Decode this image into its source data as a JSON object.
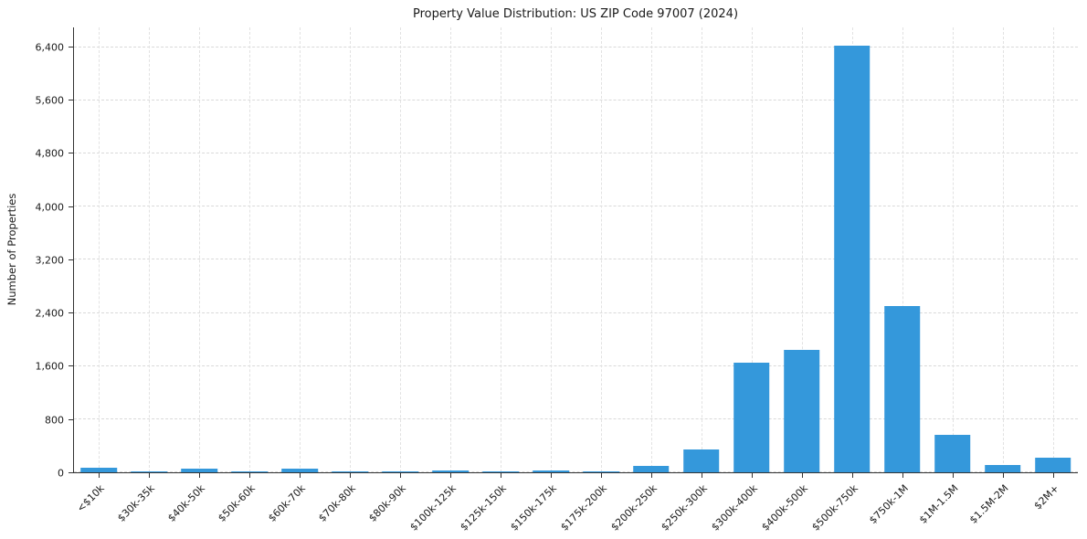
{
  "chart_data": {
    "type": "bar",
    "title": "Property Value Distribution: US ZIP Code 97007 (2024)",
    "ylabel": "Number of Properties",
    "xlabel": "",
    "categories": [
      "<$10k",
      "$30k-35k",
      "$40k-50k",
      "$50k-60k",
      "$60k-70k",
      "$70k-80k",
      "$80k-90k",
      "$100k-125k",
      "$125k-150k",
      "$150k-175k",
      "$175k-200k",
      "$200k-250k",
      "$250k-300k",
      "$300k-400k",
      "$400k-500k",
      "$500k-750k",
      "$750k-1M",
      "$1M-1.5M",
      "$1.5M-2M",
      "$2M+"
    ],
    "values": [
      70,
      10,
      55,
      10,
      55,
      10,
      10,
      25,
      10,
      25,
      10,
      90,
      350,
      1650,
      1840,
      6420,
      2510,
      560,
      110,
      220
    ],
    "ylim": [
      0,
      6700
    ],
    "yticks": [
      0,
      800,
      1600,
      2400,
      3200,
      4000,
      4800,
      5600,
      6400
    ],
    "ytick_labels": [
      "0",
      "800",
      "1,600",
      "2,400",
      "3,200",
      "4,000",
      "4,800",
      "5,600",
      "6,400"
    ],
    "bar_color": "#3498db",
    "grid": "dashed horizontal and vertical",
    "gridline_color": "#d9d9d9",
    "legend": "none"
  }
}
